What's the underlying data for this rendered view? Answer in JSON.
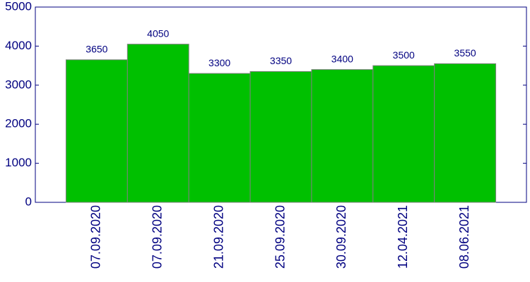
{
  "chart_data": {
    "type": "bar",
    "categories": [
      "07.09.2020",
      "07.09.2020",
      "21.09.2020",
      "25.09.2020",
      "30.09.2020",
      "12.04.2021",
      "08.06.2021"
    ],
    "values": [
      3650,
      4050,
      3300,
      3350,
      3400,
      3500,
      3550
    ],
    "color": "#00c000",
    "ylim": [
      0,
      5000
    ],
    "yticks": [
      0,
      1000,
      2000,
      3000,
      4000,
      5000
    ],
    "grid": false
  }
}
